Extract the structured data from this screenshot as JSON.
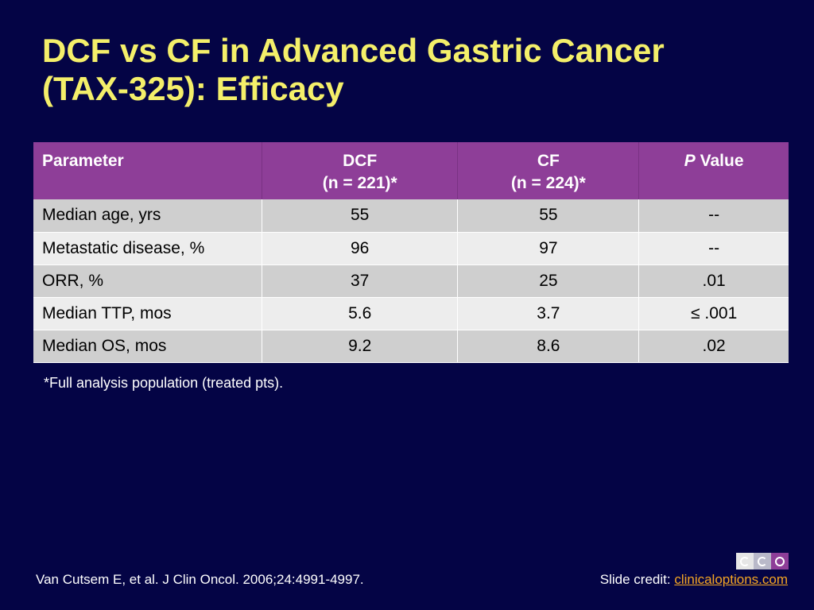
{
  "slide": {
    "title_line1": "DCF vs CF in Advanced Gastric Cancer",
    "title_line2": "(TAX-325): Efficacy"
  },
  "table": {
    "headers": {
      "parameter": "Parameter",
      "dcf_label": "DCF",
      "dcf_n": "(n = 221)*",
      "cf_label": "CF",
      "cf_n": "(n = 224)*",
      "p_italic": "P",
      "p_rest": " Value"
    },
    "rows": [
      {
        "parameter": "Median age, yrs",
        "dcf": "55",
        "cf": "55",
        "p": "--"
      },
      {
        "parameter": "Metastatic disease, %",
        "dcf": "96",
        "cf": "97",
        "p": "--"
      },
      {
        "parameter": "ORR, %",
        "dcf": "37",
        "cf": "25",
        "p": ".01"
      },
      {
        "parameter": "Median TTP, mos",
        "dcf": "5.6",
        "cf": "3.7",
        "p": "≤ .001"
      },
      {
        "parameter": "Median OS, mos",
        "dcf": "9.2",
        "cf": "8.6",
        "p": ".02"
      }
    ]
  },
  "footnote": "*Full analysis population (treated pts).",
  "citation": "Van Cutsem E, et al. J Clin Oncol. 2006;24:4991-4997.",
  "credit": {
    "prefix": "Slide credit: ",
    "link_text": "clinicaloptions.com"
  },
  "logo": {
    "icon": "cco-logo-icon"
  },
  "colors": {
    "background": "#040445",
    "title": "#f4ef6a",
    "header": "#8e3e98",
    "row_odd": "#cfcfcf",
    "row_even": "#ededed",
    "link": "#f5a623"
  }
}
